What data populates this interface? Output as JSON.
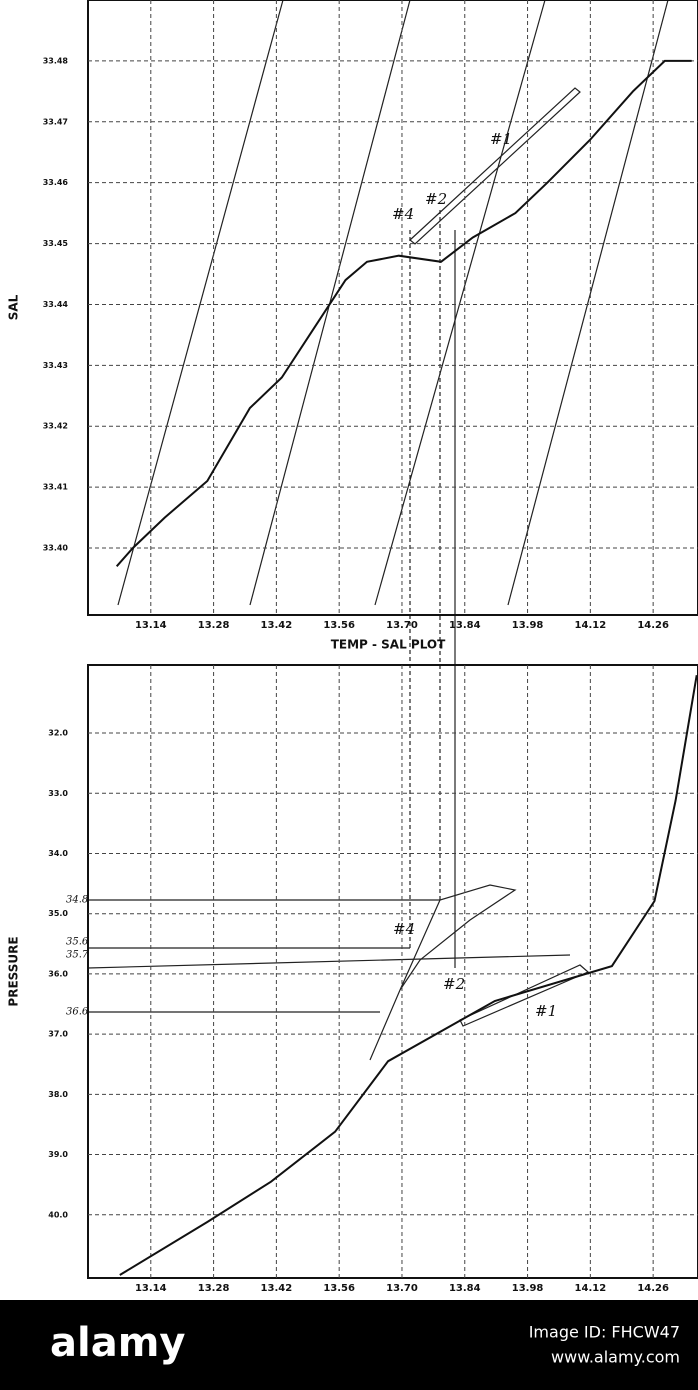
{
  "chart_data": [
    {
      "type": "line",
      "x_label": "TEMP - SAL PLOT",
      "y_label": "SAL",
      "xlim": [
        13.0,
        14.36
      ],
      "ylim": [
        33.389,
        33.49
      ],
      "xticks": [
        13.14,
        13.28,
        13.42,
        13.56,
        {
          "value": 13.7,
          "label": "13.70"
        },
        13.84,
        13.98,
        14.12,
        14.26
      ],
      "yticks": [
        {
          "value": 33.4,
          "label": "33.40"
        },
        33.41,
        33.42,
        33.43,
        33.44,
        33.45,
        33.46,
        33.47,
        33.48
      ],
      "grid": true,
      "annotations": [
        "#1",
        "#2",
        "#4"
      ],
      "series": [
        {
          "color": "#111",
          "x": [
            13.064,
            13.1,
            13.171,
            13.266,
            13.361,
            13.432,
            13.503,
            13.574,
            13.622,
            13.693,
            13.787,
            13.858,
            13.953,
            14.024,
            14.119,
            14.215,
            14.286,
            14.346
          ],
          "values": [
            33.397,
            33.4,
            33.405,
            33.411,
            33.423,
            33.428,
            33.436,
            33.444,
            33.447,
            33.448,
            33.447,
            33.451,
            33.455,
            33.46,
            33.467,
            33.475,
            33.48,
            33.48
          ]
        }
      ]
    },
    {
      "type": "line",
      "y_label": "PRESSURE",
      "xlim": [
        13.0,
        14.36
      ],
      "ylim": [
        41.05,
        30.87
      ],
      "xticks": [
        13.14,
        13.28,
        13.42,
        13.56,
        {
          "value": 13.7,
          "label": "13.70"
        },
        13.84,
        13.98,
        14.12,
        14.26
      ],
      "yticks": [
        {
          "value": 32,
          "label": "32.0"
        },
        {
          "value": 33,
          "label": "33.0"
        },
        {
          "value": 34,
          "label": "34.0"
        },
        {
          "value": 35,
          "label": "35.0"
        },
        {
          "value": 36,
          "label": "36.0"
        },
        {
          "value": 37,
          "label": "37.0"
        },
        {
          "value": 38,
          "label": "38.0"
        },
        {
          "value": 39,
          "label": "39.0"
        },
        {
          "value": 40,
          "label": "40.0"
        }
      ],
      "grid": true,
      "annotations": [
        "#4",
        "#2",
        "#1",
        "34.8",
        "35.6",
        "35.7",
        "36.6"
      ],
      "series": [
        {
          "color": "#111",
          "x": [
            13.071,
            13.266,
            13.408,
            13.551,
            13.669,
            13.907,
            14.168,
            14.263,
            14.31,
            14.357
          ],
          "values": [
            41.0,
            40.12,
            39.45,
            38.62,
            37.45,
            36.45,
            35.87,
            34.79,
            33.12,
            31.04
          ]
        }
      ]
    }
  ],
  "watermark": {
    "brand": "alamy",
    "image_id": "Image ID: FHCW47",
    "site": "www.alamy.com"
  }
}
